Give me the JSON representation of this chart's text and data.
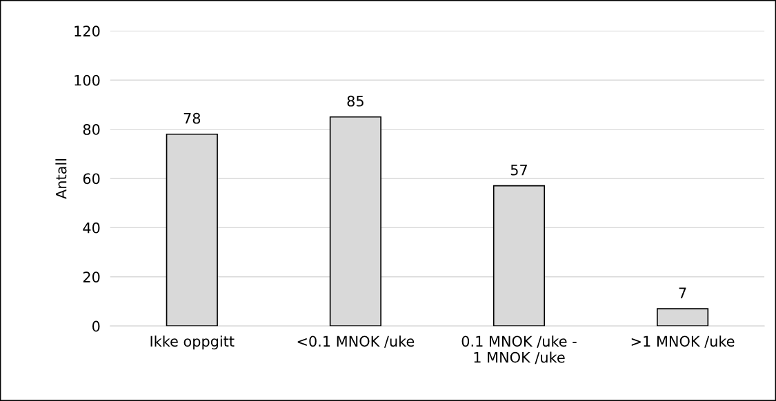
{
  "chart_data": {
    "type": "bar",
    "ylabel": "Antall",
    "categories": [
      "Ikke oppgitt",
      "<0.1 MNOK /uke",
      "0.1 MNOK /uke -\n1 MNOK /uke",
      ">1 MNOK /uke"
    ],
    "values": [
      78,
      85,
      57,
      7
    ],
    "color": "#d9d9d9",
    "data_labels": true,
    "ylim": [
      0,
      120
    ],
    "yticks": [
      0,
      20,
      40,
      60,
      80,
      100,
      120
    ],
    "grid": "y",
    "legend": false
  }
}
